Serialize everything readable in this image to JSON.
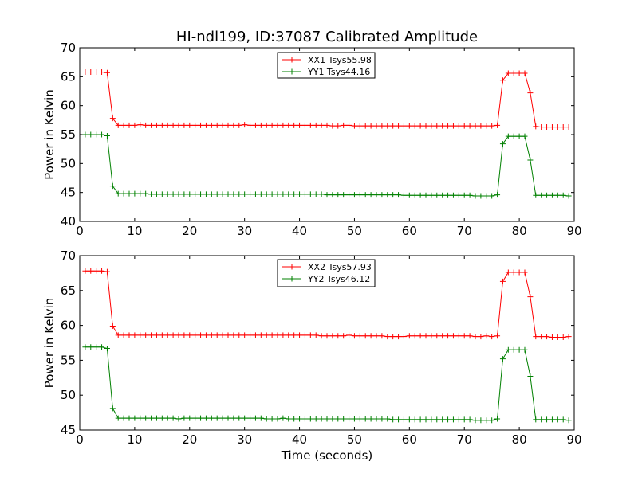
{
  "figure": {
    "title": "HI-ndl199, ID:37087 Calibrated Amplitude",
    "xlabel": "Time (seconds)"
  },
  "colors": {
    "xx": "#ff0000",
    "yy": "#008000"
  },
  "chart_data": [
    {
      "type": "line",
      "title": "HI-ndl199, ID:37087 Calibrated Amplitude",
      "xlabel": "",
      "ylabel": "Power in Kelvin",
      "xlim": [
        0,
        90
      ],
      "ylim": [
        40,
        70
      ],
      "xticks": [
        "0",
        "10",
        "20",
        "30",
        "40",
        "50",
        "60",
        "70",
        "80",
        "90"
      ],
      "yticks": [
        "40",
        "45",
        "50",
        "55",
        "60",
        "65",
        "70"
      ],
      "grid": false,
      "legend_position": "top-center",
      "x": [
        1,
        2,
        3,
        4,
        5,
        6,
        7,
        8,
        9,
        10,
        11,
        12,
        13,
        14,
        15,
        16,
        17,
        18,
        19,
        20,
        21,
        22,
        23,
        24,
        25,
        26,
        27,
        28,
        29,
        30,
        31,
        32,
        33,
        34,
        35,
        36,
        37,
        38,
        39,
        40,
        41,
        42,
        43,
        44,
        45,
        46,
        47,
        48,
        49,
        50,
        51,
        52,
        53,
        54,
        55,
        56,
        57,
        58,
        59,
        60,
        61,
        62,
        63,
        64,
        65,
        66,
        67,
        68,
        69,
        70,
        71,
        72,
        73,
        74,
        75,
        76,
        77,
        78,
        79,
        80,
        81,
        82,
        83,
        84,
        85,
        86,
        87,
        88,
        89
      ],
      "series": [
        {
          "name": "XX1 Tsys55.98",
          "color": "#ff0000",
          "values": [
            65.8,
            65.8,
            65.8,
            65.8,
            65.7,
            57.8,
            56.6,
            56.6,
            56.6,
            56.6,
            56.7,
            56.6,
            56.6,
            56.6,
            56.6,
            56.6,
            56.6,
            56.6,
            56.6,
            56.6,
            56.6,
            56.6,
            56.6,
            56.6,
            56.6,
            56.6,
            56.6,
            56.6,
            56.6,
            56.7,
            56.6,
            56.6,
            56.6,
            56.6,
            56.6,
            56.6,
            56.6,
            56.6,
            56.6,
            56.6,
            56.6,
            56.6,
            56.6,
            56.6,
            56.6,
            56.5,
            56.5,
            56.6,
            56.6,
            56.5,
            56.5,
            56.5,
            56.5,
            56.5,
            56.5,
            56.5,
            56.5,
            56.5,
            56.5,
            56.5,
            56.5,
            56.5,
            56.5,
            56.5,
            56.5,
            56.5,
            56.5,
            56.5,
            56.5,
            56.5,
            56.5,
            56.5,
            56.5,
            56.5,
            56.5,
            56.6,
            64.4,
            65.6,
            65.6,
            65.6,
            65.6,
            62.2,
            56.4,
            56.3,
            56.3,
            56.3,
            56.3,
            56.3,
            56.3
          ]
        },
        {
          "name": "YY1 Tsys44.16",
          "color": "#008000",
          "values": [
            55.0,
            55.0,
            55.0,
            55.0,
            54.8,
            46.1,
            44.8,
            44.8,
            44.8,
            44.8,
            44.8,
            44.8,
            44.7,
            44.7,
            44.7,
            44.7,
            44.7,
            44.7,
            44.7,
            44.7,
            44.7,
            44.7,
            44.7,
            44.7,
            44.7,
            44.7,
            44.7,
            44.7,
            44.7,
            44.7,
            44.7,
            44.7,
            44.7,
            44.7,
            44.7,
            44.7,
            44.7,
            44.7,
            44.7,
            44.7,
            44.7,
            44.7,
            44.7,
            44.7,
            44.6,
            44.6,
            44.6,
            44.6,
            44.6,
            44.6,
            44.6,
            44.6,
            44.6,
            44.6,
            44.6,
            44.6,
            44.6,
            44.6,
            44.5,
            44.5,
            44.5,
            44.5,
            44.5,
            44.5,
            44.5,
            44.5,
            44.5,
            44.5,
            44.5,
            44.5,
            44.5,
            44.4,
            44.4,
            44.4,
            44.4,
            44.6,
            53.4,
            54.7,
            54.7,
            54.7,
            54.7,
            50.6,
            44.5,
            44.5,
            44.5,
            44.5,
            44.5,
            44.5,
            44.4
          ]
        }
      ]
    },
    {
      "type": "line",
      "title": "",
      "xlabel": "Time (seconds)",
      "ylabel": "Power in Kelvin",
      "xlim": [
        0,
        90
      ],
      "ylim": [
        45,
        70
      ],
      "xticks": [
        "0",
        "10",
        "20",
        "30",
        "40",
        "50",
        "60",
        "70",
        "80",
        "90"
      ],
      "yticks": [
        "45",
        "50",
        "55",
        "60",
        "65",
        "70"
      ],
      "grid": false,
      "legend_position": "top-center",
      "x": [
        1,
        2,
        3,
        4,
        5,
        6,
        7,
        8,
        9,
        10,
        11,
        12,
        13,
        14,
        15,
        16,
        17,
        18,
        19,
        20,
        21,
        22,
        23,
        24,
        25,
        26,
        27,
        28,
        29,
        30,
        31,
        32,
        33,
        34,
        35,
        36,
        37,
        38,
        39,
        40,
        41,
        42,
        43,
        44,
        45,
        46,
        47,
        48,
        49,
        50,
        51,
        52,
        53,
        54,
        55,
        56,
        57,
        58,
        59,
        60,
        61,
        62,
        63,
        64,
        65,
        66,
        67,
        68,
        69,
        70,
        71,
        72,
        73,
        74,
        75,
        76,
        77,
        78,
        79,
        80,
        81,
        82,
        83,
        84,
        85,
        86,
        87,
        88,
        89
      ],
      "series": [
        {
          "name": "XX2 Tsys57.93",
          "color": "#ff0000",
          "values": [
            67.8,
            67.8,
            67.8,
            67.8,
            67.7,
            59.9,
            58.6,
            58.6,
            58.6,
            58.6,
            58.6,
            58.6,
            58.6,
            58.6,
            58.6,
            58.6,
            58.6,
            58.6,
            58.6,
            58.6,
            58.6,
            58.6,
            58.6,
            58.6,
            58.6,
            58.6,
            58.6,
            58.6,
            58.6,
            58.6,
            58.6,
            58.6,
            58.6,
            58.6,
            58.6,
            58.6,
            58.6,
            58.6,
            58.6,
            58.6,
            58.6,
            58.6,
            58.6,
            58.5,
            58.5,
            58.5,
            58.5,
            58.5,
            58.6,
            58.5,
            58.5,
            58.5,
            58.5,
            58.5,
            58.5,
            58.4,
            58.4,
            58.4,
            58.4,
            58.5,
            58.5,
            58.5,
            58.5,
            58.5,
            58.5,
            58.5,
            58.5,
            58.5,
            58.5,
            58.5,
            58.5,
            58.4,
            58.4,
            58.5,
            58.4,
            58.5,
            66.3,
            67.6,
            67.6,
            67.6,
            67.6,
            64.1,
            58.4,
            58.4,
            58.4,
            58.3,
            58.3,
            58.3,
            58.4
          ]
        },
        {
          "name": "YY2 Tsys46.12",
          "color": "#008000",
          "values": [
            56.9,
            56.9,
            56.9,
            56.9,
            56.7,
            48.1,
            46.7,
            46.7,
            46.7,
            46.7,
            46.7,
            46.7,
            46.7,
            46.7,
            46.7,
            46.7,
            46.7,
            46.6,
            46.7,
            46.7,
            46.7,
            46.7,
            46.7,
            46.7,
            46.7,
            46.7,
            46.7,
            46.7,
            46.7,
            46.7,
            46.7,
            46.7,
            46.7,
            46.6,
            46.6,
            46.6,
            46.7,
            46.6,
            46.6,
            46.6,
            46.6,
            46.6,
            46.6,
            46.6,
            46.6,
            46.6,
            46.6,
            46.6,
            46.6,
            46.6,
            46.6,
            46.6,
            46.6,
            46.6,
            46.6,
            46.6,
            46.5,
            46.5,
            46.5,
            46.5,
            46.5,
            46.5,
            46.5,
            46.5,
            46.5,
            46.5,
            46.5,
            46.5,
            46.5,
            46.5,
            46.5,
            46.4,
            46.4,
            46.4,
            46.4,
            46.6,
            55.2,
            56.5,
            56.5,
            56.5,
            56.5,
            52.7,
            46.5,
            46.5,
            46.5,
            46.5,
            46.5,
            46.5,
            46.4
          ]
        }
      ]
    }
  ]
}
